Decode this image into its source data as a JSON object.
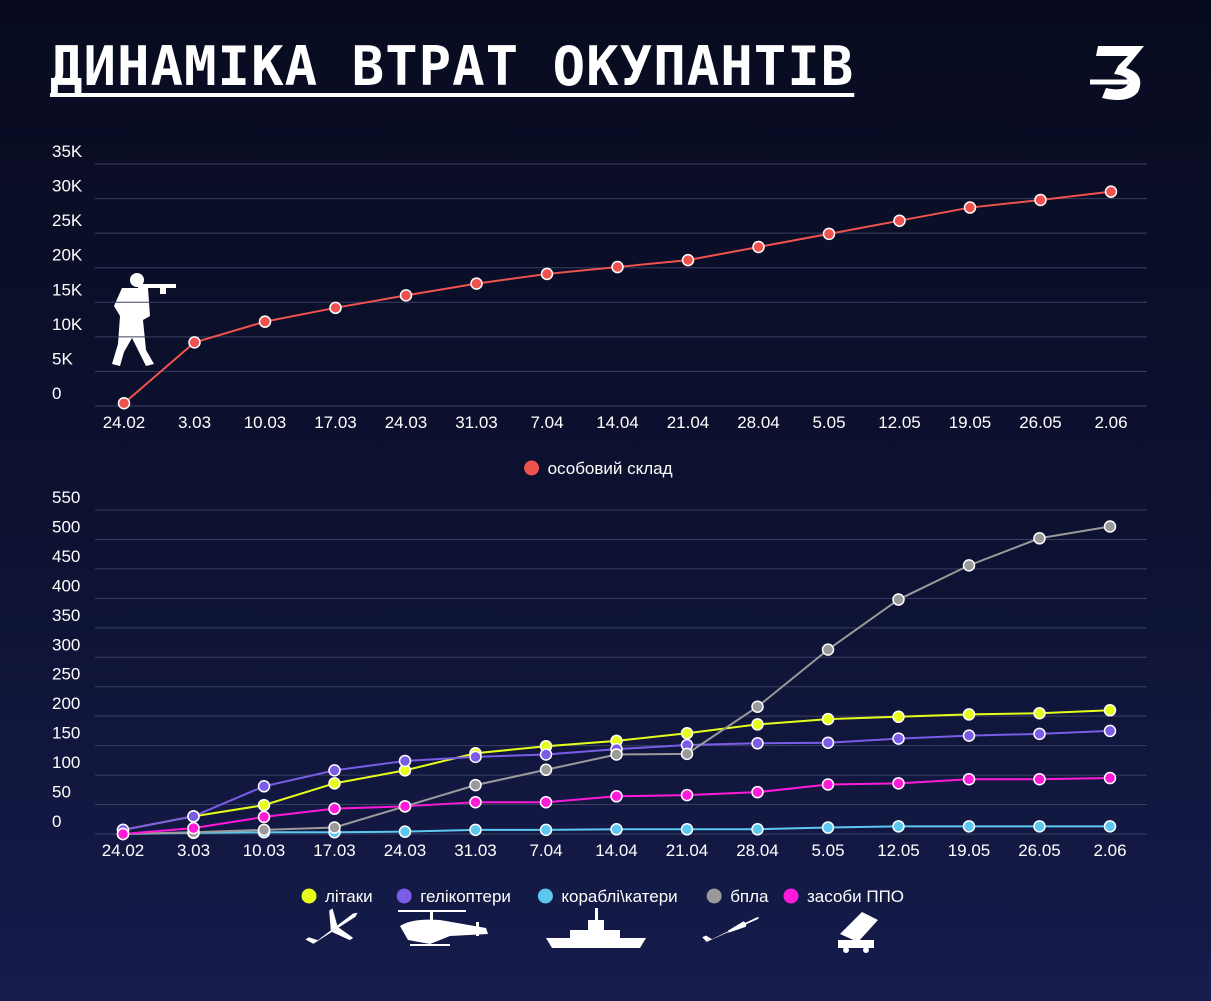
{
  "title": "ДИНАМІКА ВТРАТ ОКУПАНТІВ",
  "logo_text": "З",
  "colors": {
    "background": "#0b0f2b",
    "personnel": "#f0524f",
    "aircraft": "#e6ff1a",
    "helicopters": "#7b5ce6",
    "ships": "#5bc8f0",
    "drones": "#9a9a9a",
    "air_defense": "#ff1ad9",
    "grid": "#3a3f62"
  },
  "icons": [
    "soldier-icon",
    "plane-icon",
    "helicopter-icon",
    "ship-icon",
    "drone-icon",
    "missile-launcher-icon"
  ],
  "chart_data": [
    {
      "type": "line",
      "categories": [
        "24.02",
        "3.03",
        "10.03",
        "17.03",
        "24.03",
        "31.03",
        "7.04",
        "14.04",
        "21.04",
        "28.04",
        "5.05",
        "12.05",
        "19.05",
        "26.05",
        "2.06"
      ],
      "yticks": [
        "0",
        "5K",
        "10K",
        "15K",
        "20K",
        "25K",
        "30K",
        "35K"
      ],
      "ylim": [
        0,
        35000
      ],
      "grid": true,
      "legend_position": "bottom-center",
      "series": [
        {
          "name": "особовий склад",
          "color": "#f0524f",
          "values": [
            400,
            9200,
            12200,
            14200,
            16000,
            17700,
            19100,
            20100,
            21100,
            23000,
            24900,
            26800,
            28700,
            29800,
            31000
          ]
        }
      ]
    },
    {
      "type": "line",
      "categories": [
        "24.02",
        "3.03",
        "10.03",
        "17.03",
        "24.03",
        "31.03",
        "7.04",
        "14.04",
        "21.04",
        "28.04",
        "5.05",
        "12.05",
        "19.05",
        "26.05",
        "2.06"
      ],
      "yticks": [
        "0",
        "50",
        "100",
        "150",
        "200",
        "250",
        "300",
        "350",
        "400",
        "450",
        "500",
        "550"
      ],
      "ylim": [
        0,
        550
      ],
      "grid": true,
      "legend_position": "bottom-center",
      "series": [
        {
          "name": "літаки",
          "color": "#e6ff1a",
          "values": [
            7,
            30,
            49,
            86,
            108,
            137,
            149,
            158,
            171,
            186,
            195,
            199,
            203,
            205,
            210
          ]
        },
        {
          "name": "гелікоптери",
          "color": "#7b5ce6",
          "values": [
            7,
            30,
            81,
            108,
            124,
            131,
            135,
            144,
            151,
            154,
            155,
            162,
            167,
            170,
            175
          ]
        },
        {
          "name": "кораблі\\катери",
          "color": "#5bc8f0",
          "values": [
            0,
            2,
            3,
            3,
            4,
            7,
            7,
            8,
            8,
            8,
            11,
            13,
            13,
            13,
            13
          ]
        },
        {
          "name": "бпла",
          "color": "#9a9a9a",
          "values": [
            0,
            3,
            7,
            11,
            47,
            83,
            109,
            135,
            136,
            216,
            313,
            398,
            456,
            502,
            522
          ]
        },
        {
          "name": "засоби ППО",
          "color": "#ff1ad9",
          "values": [
            0,
            10,
            29,
            43,
            47,
            54,
            54,
            64,
            66,
            71,
            84,
            86,
            93,
            93,
            95
          ]
        }
      ]
    }
  ]
}
